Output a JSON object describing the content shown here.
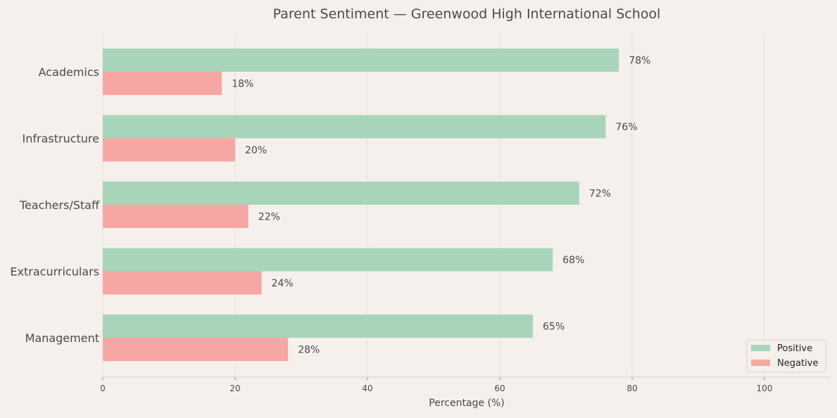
{
  "chart_data": {
    "type": "bar",
    "orientation": "horizontal",
    "title": "Parent Sentiment — Greenwood High International School",
    "xlabel": "Percentage (%)",
    "ylabel": "",
    "xlim": [
      0,
      110
    ],
    "x_ticks": [
      0,
      20,
      40,
      60,
      80,
      100
    ],
    "categories": [
      "Academics",
      "Infrastructure",
      "Teachers/Staff",
      "Extracurriculars",
      "Management"
    ],
    "series": [
      {
        "name": "Positive",
        "values": [
          78,
          76,
          72,
          68,
          65
        ],
        "labels": [
          "78%",
          "76%",
          "72%",
          "68%",
          "65%"
        ],
        "color": "#a8d5b9"
      },
      {
        "name": "Negative",
        "values": [
          18,
          20,
          22,
          24,
          28
        ],
        "labels": [
          "18%",
          "20%",
          "22%",
          "24%",
          "28%"
        ],
        "color": "#f6a7a3"
      }
    ],
    "grid": true,
    "legend_position": "bottom-right"
  }
}
